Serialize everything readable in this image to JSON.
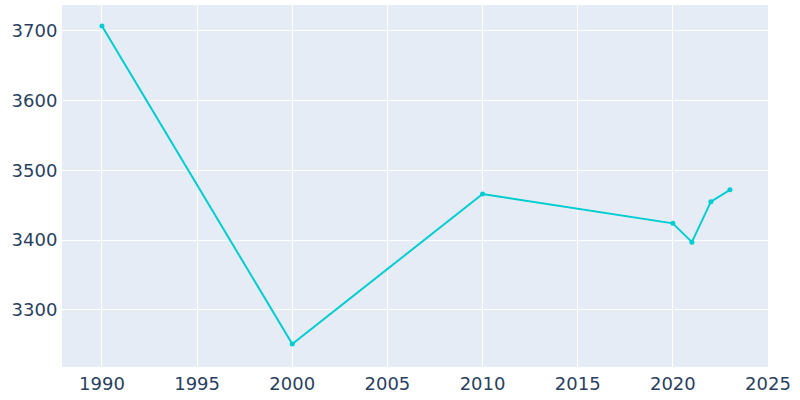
{
  "chart_data": {
    "type": "line",
    "x": [
      1990,
      2000,
      2010,
      2020,
      2021,
      2022,
      2023
    ],
    "values": [
      3707,
      3251,
      3466,
      3424,
      3397,
      3455,
      3472
    ],
    "color": "#00cdd0",
    "marker": "circle",
    "xlim": [
      1987.9,
      2025
    ],
    "xticks": [
      1990,
      1995,
      2000,
      2005,
      2010,
      2015,
      2020,
      2025
    ],
    "ylim": [
      3218,
      3737
    ],
    "yticks": [
      3300,
      3400,
      3500,
      3600,
      3700
    ],
    "grid": true
  }
}
